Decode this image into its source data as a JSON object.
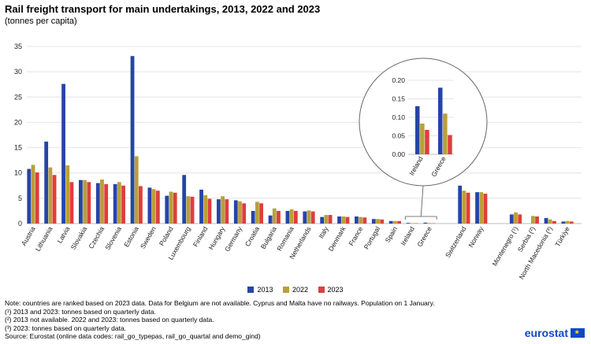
{
  "header": {
    "title": "Rail freight transport for main undertakings, 2013, 2022 and 2023",
    "subtitle": "(tonnes per capita)"
  },
  "chart_data": {
    "type": "bar",
    "title": "Rail freight transport for main undertakings, 2013, 2022 and 2023",
    "ylabel": "tonnes per capita",
    "ylim": [
      0,
      35
    ],
    "yticks": [
      0,
      5,
      10,
      15,
      20,
      25,
      30,
      35
    ],
    "grid": true,
    "legend_position": "bottom",
    "colors": [
      "#2644a8",
      "#b9a037",
      "#e03d3d"
    ],
    "categories": [
      "Austria",
      "Lithuania",
      "Latvia",
      "Slovakia",
      "Czechia",
      "Slovenia",
      "Estonia",
      "Sweden",
      "Poland",
      "Luxembourg",
      "Finland",
      "Hungary",
      "Germany",
      "Croatia",
      "Bulgaria",
      "Romania",
      "Netherlands",
      "Italy",
      "Denmark",
      "France",
      "Portugal",
      "Spain",
      "Ireland",
      "Greece",
      "",
      "Switzerland",
      "Norway",
      "",
      "Montenegro (¹)",
      "Serbia (²)",
      "North Macedonia (³)",
      "Türkiye"
    ],
    "series": [
      {
        "name": "2013",
        "values": [
          10.8,
          16.2,
          27.6,
          8.6,
          8.0,
          7.8,
          33.1,
          7.1,
          5.5,
          9.6,
          6.7,
          4.8,
          4.6,
          2.5,
          1.6,
          2.5,
          2.4,
          1.3,
          1.4,
          1.4,
          0.9,
          0.5,
          0.13,
          0.18,
          null,
          7.5,
          6.2,
          null,
          1.8,
          null,
          1.1,
          0.4
        ]
      },
      {
        "name": "2022",
        "values": [
          11.6,
          11.1,
          11.5,
          8.6,
          8.7,
          8.2,
          13.3,
          6.8,
          6.3,
          5.4,
          5.6,
          5.4,
          4.4,
          4.3,
          3.0,
          2.8,
          2.6,
          1.7,
          1.4,
          1.3,
          0.9,
          0.5,
          0.083,
          0.11,
          null,
          6.5,
          6.2,
          null,
          2.2,
          1.5,
          0.8,
          0.5
        ]
      },
      {
        "name": "2023",
        "values": [
          10.1,
          9.6,
          8.2,
          8.2,
          7.8,
          7.5,
          7.4,
          6.5,
          6.1,
          5.3,
          4.9,
          4.8,
          4.0,
          4.0,
          2.5,
          2.5,
          2.4,
          1.7,
          1.3,
          1.2,
          0.8,
          0.5,
          0.066,
          0.052,
          null,
          6.1,
          5.9,
          null,
          1.8,
          1.4,
          0.5,
          0.4
        ]
      }
    ],
    "inset": {
      "categories": [
        "Ireland",
        "Greece"
      ],
      "ylim": [
        0,
        0.2
      ],
      "yticks": [
        "0.00",
        "0.05",
        "0.10",
        "0.15",
        "0.20"
      ]
    }
  },
  "legend": {
    "items": [
      {
        "label": "2013",
        "color": "#2644a8"
      },
      {
        "label": "2022",
        "color": "#b9a037"
      },
      {
        "label": "2023",
        "color": "#e03d3d"
      }
    ]
  },
  "notes": {
    "lines": [
      "Note: countries are ranked based on 2023 data. Data for Belgium are not available. Cyprus and Malta have no railways. Population on 1 January.",
      "(¹) 2013 and 2023: tonnes based on quarterly data.",
      "(²) 2013 not available. 2022 and 2023: tonnes based on quarterly data.",
      "(³) 2023: tonnes based on quarterly data.",
      "Source: Eurostat (online data codes: rail_go_typepas, rail_go_quartal and demo_gind)"
    ]
  },
  "brand": {
    "name": "eurostat",
    "color": "#0e47cb"
  }
}
